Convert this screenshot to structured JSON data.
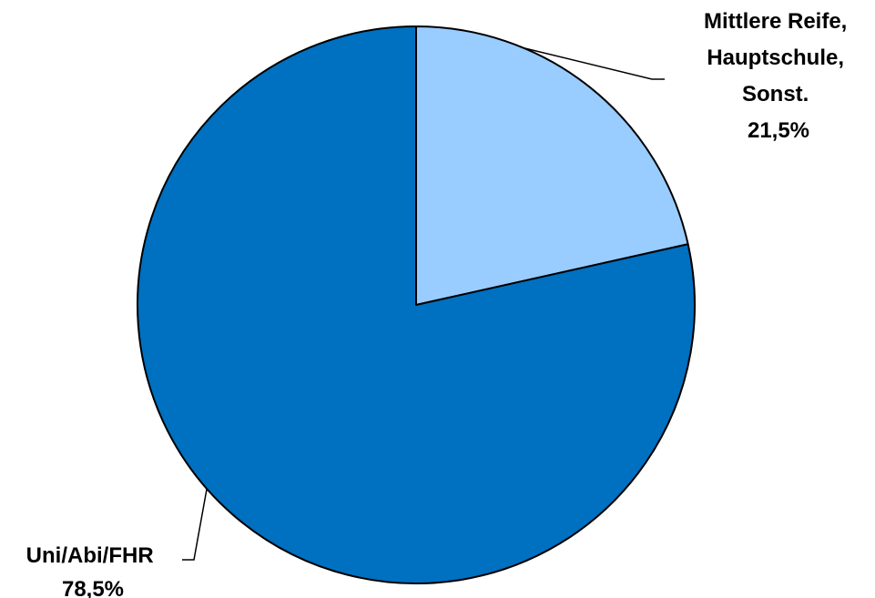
{
  "chart_data": {
    "type": "pie",
    "categories": [
      "Mittlere Reife, Hauptschule, Sonst.",
      "Uni/Abi/FHR"
    ],
    "values": [
      21.5,
      78.5
    ],
    "slices": [
      {
        "name": "Mittlere Reife, Hauptschule, Sonst.",
        "value": 21.5,
        "label_lines": [
          "Mittlere Reife,",
          "Hauptschule,",
          "Sonst."
        ],
        "value_label": "21,5%",
        "color": "#99CCFF"
      },
      {
        "name": "Uni/Abi/FHR",
        "value": 78.5,
        "label_lines": [
          "Uni/Abi/FHR"
        ],
        "value_label": "78,5%",
        "color": "#0070C0"
      }
    ],
    "start_angle_deg": 0,
    "direction": "clockwise",
    "title": "",
    "legend": "none",
    "outline_color": "#000000"
  }
}
